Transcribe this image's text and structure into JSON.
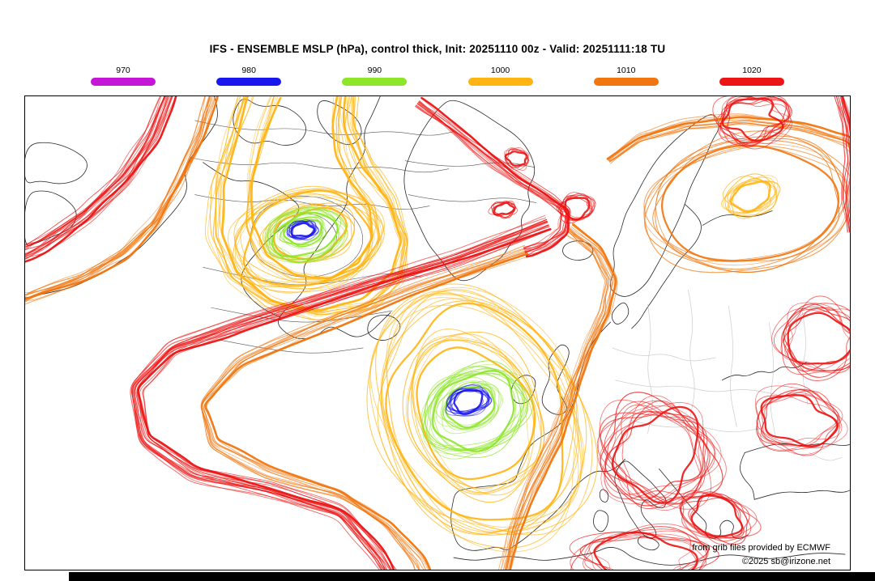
{
  "title": "IFS - ENSEMBLE MSLP (hPa), control thick, Init: 20251110 00z - Valid: 20251111:18 TU",
  "legend": {
    "items": [
      {
        "label": "970",
        "color": "#c516d8"
      },
      {
        "label": "980",
        "color": "#1a17ee"
      },
      {
        "label": "990",
        "color": "#8ee62a"
      },
      {
        "label": "1000",
        "color": "#ffb412"
      },
      {
        "label": "1010",
        "color": "#f1760f"
      },
      {
        "label": "1020",
        "color": "#ec1414"
      }
    ]
  },
  "map": {
    "attribution_line1": "from grib files provided by ECMWF",
    "attribution_line2": "©2025 sb@irizone.net"
  }
}
